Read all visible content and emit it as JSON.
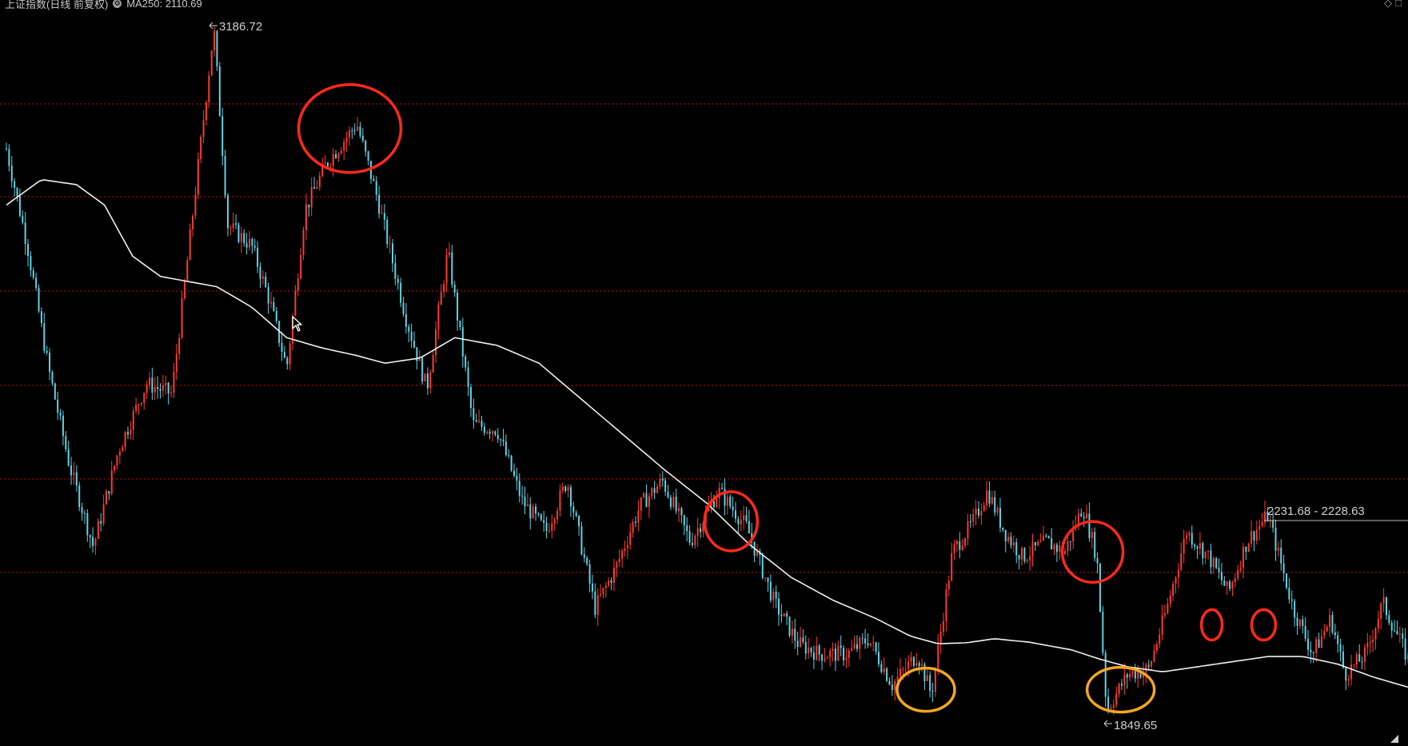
{
  "header": {
    "title": "上证指数(日线 前复权)",
    "ma_label": "MA250: 2110.69"
  },
  "colors": {
    "background": "#000000",
    "up": "#ff3b30",
    "down": "#5fd3e6",
    "ma": "#f0f0f0",
    "grid": "#b01818",
    "circle_resistance": "#ff2a1a",
    "circle_support": "#f5a623"
  },
  "chart_data": {
    "type": "candlestick",
    "title": "上证指数(日线 前复权)",
    "ylim": [
      1800,
      3220
    ],
    "grid": "horizontal dotted red",
    "annotations": {
      "high": "3186.72",
      "low": "1849.65",
      "range": "2231.68 - 2228.63"
    },
    "price_series_anchors": [
      {
        "x": 0.0,
        "y": 2950
      },
      {
        "x": 0.015,
        "y": 2760
      },
      {
        "x": 0.03,
        "y": 2520
      },
      {
        "x": 0.045,
        "y": 2330
      },
      {
        "x": 0.062,
        "y": 2170
      },
      {
        "x": 0.08,
        "y": 2360
      },
      {
        "x": 0.1,
        "y": 2490
      },
      {
        "x": 0.118,
        "y": 2470
      },
      {
        "x": 0.132,
        "y": 2800
      },
      {
        "x": 0.148,
        "y": 3186.72
      },
      {
        "x": 0.158,
        "y": 2800
      },
      {
        "x": 0.175,
        "y": 2760
      },
      {
        "x": 0.188,
        "y": 2650
      },
      {
        "x": 0.2,
        "y": 2520
      },
      {
        "x": 0.213,
        "y": 2830
      },
      {
        "x": 0.228,
        "y": 2920
      },
      {
        "x": 0.25,
        "y": 3000
      },
      {
        "x": 0.265,
        "y": 2850
      },
      {
        "x": 0.285,
        "y": 2620
      },
      {
        "x": 0.3,
        "y": 2480
      },
      {
        "x": 0.315,
        "y": 2750
      },
      {
        "x": 0.333,
        "y": 2410
      },
      {
        "x": 0.35,
        "y": 2400
      },
      {
        "x": 0.368,
        "y": 2260
      },
      {
        "x": 0.385,
        "y": 2200
      },
      {
        "x": 0.4,
        "y": 2300
      },
      {
        "x": 0.42,
        "y": 2050
      },
      {
        "x": 0.435,
        "y": 2130
      },
      {
        "x": 0.452,
        "y": 2250
      },
      {
        "x": 0.468,
        "y": 2300
      },
      {
        "x": 0.488,
        "y": 2180
      },
      {
        "x": 0.508,
        "y": 2280
      },
      {
        "x": 0.528,
        "y": 2210
      },
      {
        "x": 0.548,
        "y": 2060
      },
      {
        "x": 0.565,
        "y": 1980
      },
      {
        "x": 0.58,
        "y": 1960
      },
      {
        "x": 0.6,
        "y": 1960
      },
      {
        "x": 0.615,
        "y": 1990
      },
      {
        "x": 0.632,
        "y": 1900
      },
      {
        "x": 0.65,
        "y": 1960
      },
      {
        "x": 0.66,
        "y": 1880
      },
      {
        "x": 0.675,
        "y": 2160
      },
      {
        "x": 0.69,
        "y": 2220
      },
      {
        "x": 0.7,
        "y": 2280
      },
      {
        "x": 0.712,
        "y": 2200
      },
      {
        "x": 0.725,
        "y": 2150
      },
      {
        "x": 0.742,
        "y": 2180
      },
      {
        "x": 0.755,
        "y": 2160
      },
      {
        "x": 0.768,
        "y": 2250
      },
      {
        "x": 0.778,
        "y": 2150
      },
      {
        "x": 0.785,
        "y": 1849.65
      },
      {
        "x": 0.8,
        "y": 1920
      },
      {
        "x": 0.815,
        "y": 1930
      },
      {
        "x": 0.828,
        "y": 2050
      },
      {
        "x": 0.842,
        "y": 2200
      },
      {
        "x": 0.858,
        "y": 2150
      },
      {
        "x": 0.872,
        "y": 2080
      },
      {
        "x": 0.885,
        "y": 2180
      },
      {
        "x": 0.9,
        "y": 2231.68
      },
      {
        "x": 0.918,
        "y": 2050
      },
      {
        "x": 0.932,
        "y": 1960
      },
      {
        "x": 0.945,
        "y": 2030
      },
      {
        "x": 0.955,
        "y": 1920
      },
      {
        "x": 0.97,
        "y": 1960
      },
      {
        "x": 0.982,
        "y": 2060
      },
      {
        "x": 1.0,
        "y": 1950
      }
    ],
    "ma250_anchors": [
      {
        "x": 0.0,
        "y": 2840
      },
      {
        "x": 0.025,
        "y": 2890
      },
      {
        "x": 0.05,
        "y": 2880
      },
      {
        "x": 0.07,
        "y": 2840
      },
      {
        "x": 0.09,
        "y": 2740
      },
      {
        "x": 0.11,
        "y": 2700
      },
      {
        "x": 0.13,
        "y": 2690
      },
      {
        "x": 0.15,
        "y": 2680
      },
      {
        "x": 0.175,
        "y": 2640
      },
      {
        "x": 0.2,
        "y": 2580
      },
      {
        "x": 0.225,
        "y": 2560
      },
      {
        "x": 0.25,
        "y": 2545
      },
      {
        "x": 0.27,
        "y": 2530
      },
      {
        "x": 0.295,
        "y": 2540
      },
      {
        "x": 0.32,
        "y": 2580
      },
      {
        "x": 0.35,
        "y": 2565
      },
      {
        "x": 0.38,
        "y": 2530
      },
      {
        "x": 0.41,
        "y": 2460
      },
      {
        "x": 0.44,
        "y": 2390
      },
      {
        "x": 0.47,
        "y": 2320
      },
      {
        "x": 0.5,
        "y": 2255
      },
      {
        "x": 0.53,
        "y": 2175
      },
      {
        "x": 0.56,
        "y": 2110
      },
      {
        "x": 0.59,
        "y": 2065
      },
      {
        "x": 0.62,
        "y": 2030
      },
      {
        "x": 0.645,
        "y": 1995
      },
      {
        "x": 0.665,
        "y": 1980
      },
      {
        "x": 0.685,
        "y": 1982
      },
      {
        "x": 0.705,
        "y": 1990
      },
      {
        "x": 0.73,
        "y": 1983
      },
      {
        "x": 0.76,
        "y": 1968
      },
      {
        "x": 0.78,
        "y": 1950
      },
      {
        "x": 0.8,
        "y": 1935
      },
      {
        "x": 0.825,
        "y": 1925
      },
      {
        "x": 0.85,
        "y": 1935
      },
      {
        "x": 0.875,
        "y": 1945
      },
      {
        "x": 0.9,
        "y": 1955
      },
      {
        "x": 0.925,
        "y": 1955
      },
      {
        "x": 0.95,
        "y": 1940
      },
      {
        "x": 0.975,
        "y": 1915
      },
      {
        "x": 1.0,
        "y": 1895
      }
    ],
    "resistance_circles": [
      {
        "x": 0.245,
        "y": 2990
      },
      {
        "x": 0.517,
        "y": 2220
      },
      {
        "x": 0.775,
        "y": 2160
      },
      {
        "x": 0.86,
        "y": 2017
      },
      {
        "x": 0.897,
        "y": 2017
      }
    ],
    "support_circles": [
      {
        "x": 0.656,
        "y": 1890
      },
      {
        "x": 0.795,
        "y": 1890
      }
    ]
  }
}
